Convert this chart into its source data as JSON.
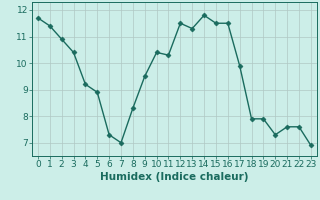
{
  "x": [
    0,
    1,
    2,
    3,
    4,
    5,
    6,
    7,
    8,
    9,
    10,
    11,
    12,
    13,
    14,
    15,
    16,
    17,
    18,
    19,
    20,
    21,
    22,
    23
  ],
  "y": [
    11.7,
    11.4,
    10.9,
    10.4,
    9.2,
    8.9,
    7.3,
    7.0,
    8.3,
    9.5,
    10.4,
    10.3,
    11.5,
    11.3,
    11.8,
    11.5,
    11.5,
    9.9,
    7.9,
    7.9,
    7.3,
    7.6,
    7.6,
    6.9
  ],
  "xlabel": "Humidex (Indice chaleur)",
  "ylim": [
    6.5,
    12.3
  ],
  "xlim": [
    -0.5,
    23.5
  ],
  "yticks": [
    7,
    8,
    9,
    10,
    11,
    12
  ],
  "xticks": [
    0,
    1,
    2,
    3,
    4,
    5,
    6,
    7,
    8,
    9,
    10,
    11,
    12,
    13,
    14,
    15,
    16,
    17,
    18,
    19,
    20,
    21,
    22,
    23
  ],
  "line_color": "#1a6b5e",
  "bg_color": "#cceee8",
  "grid_color": "#b0c8c4",
  "marker": "D",
  "marker_size": 2.5,
  "line_width": 1.0,
  "xlabel_fontsize": 7.5,
  "tick_fontsize": 6.5
}
